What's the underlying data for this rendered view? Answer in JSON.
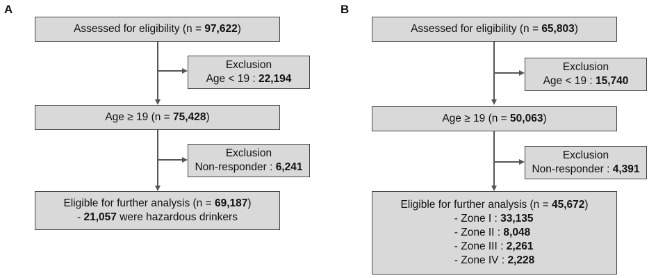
{
  "panel_a": {
    "label": "A",
    "assessed": {
      "text": "Assessed for eligibility (n = ",
      "value": "97,622",
      "close": ")"
    },
    "exclusion1": {
      "title": "Exclusion",
      "text": "Age < 19 : ",
      "value": "22,194"
    },
    "age": {
      "text": "Age ≥ 19 (n = ",
      "value": "75,428",
      "close": ")"
    },
    "exclusion2": {
      "title": "Exclusion",
      "text": "Non-responder : ",
      "value": "6,241"
    },
    "eligible": {
      "text": "Eligible for further analysis (n = ",
      "value": "69,187",
      "close": ")",
      "sub_prefix": "- ",
      "sub_value": "21,057",
      "sub_text": " were hazardous drinkers"
    }
  },
  "panel_b": {
    "label": "B",
    "assessed": {
      "text": "Assessed for eligibility (n = ",
      "value": "65,803",
      "close": ")"
    },
    "exclusion1": {
      "title": "Exclusion",
      "text": "Age < 19 : ",
      "value": "15,740"
    },
    "age": {
      "text": "Age ≥ 19 (n = ",
      "value": "50,063",
      "close": ")"
    },
    "exclusion2": {
      "title": "Exclusion",
      "text": "Non-responder : ",
      "value": "4,391"
    },
    "eligible": {
      "text": "Eligible for further analysis (n = ",
      "value": "45,672",
      "close": ")",
      "zones": [
        {
          "label": "- Zone I : ",
          "value": "33,135"
        },
        {
          "label": "- Zone II : ",
          "value": "8,048"
        },
        {
          "label": "- Zone III : ",
          "value": "2,261"
        },
        {
          "label": "- Zone IV : ",
          "value": "2,228"
        }
      ]
    }
  }
}
